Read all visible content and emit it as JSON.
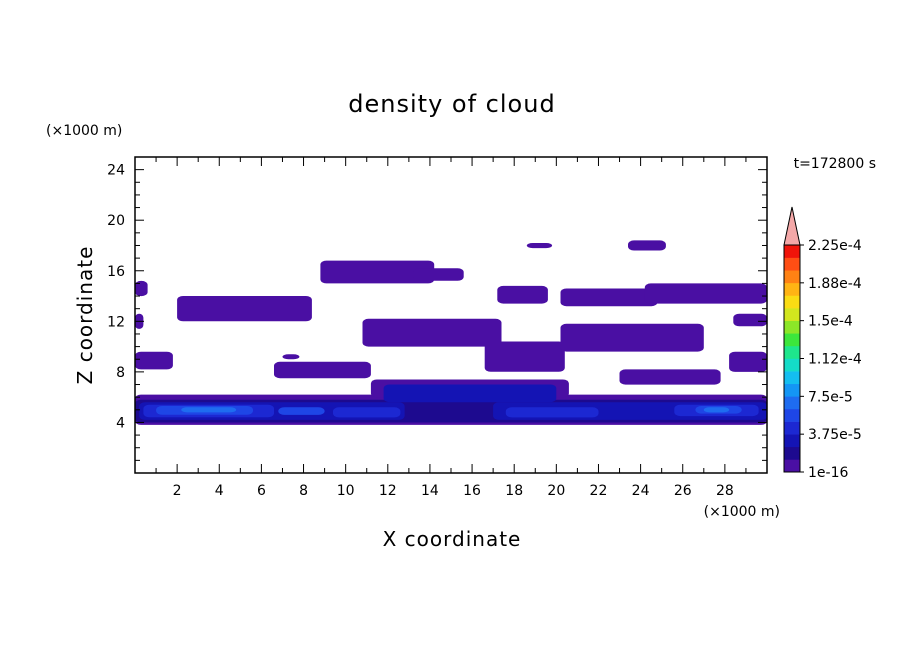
{
  "chart_data": {
    "type": "heatmap",
    "title": "density of cloud",
    "time_label": "t=172800 s",
    "xlabel": "X coordinate",
    "ylabel": "Z coordinate",
    "x_unit": "(×1000 m)",
    "y_unit": "(×1000 m)",
    "xlim": [
      0,
      30
    ],
    "ylim": [
      0,
      25
    ],
    "x_ticks": [
      "2",
      "4",
      "6",
      "8",
      "10",
      "12",
      "14",
      "16",
      "18",
      "20",
      "22",
      "24",
      "26",
      "28"
    ],
    "y_ticks": [
      "4",
      "8",
      "12",
      "16",
      "20",
      "24"
    ],
    "colorbar": {
      "labels": [
        "2.25e-4",
        "1.88e-4",
        "1.5e-4",
        "1.12e-4",
        "7.5e-5",
        "3.75e-5",
        "1e-16"
      ],
      "colors": [
        "#4a0fa3",
        "#1d0a8f",
        "#1414b4",
        "#1c28d2",
        "#1e46e6",
        "#1e6cf0",
        "#1496f5",
        "#14bef0",
        "#14dcc8",
        "#1ee68c",
        "#3ce63c",
        "#8ce628",
        "#d2e61e",
        "#fadc14",
        "#ffb414",
        "#ff8214",
        "#ff4e14",
        "#f0140a"
      ],
      "extend_color": "#f4a8a8"
    },
    "regions": [
      {
        "level": 0,
        "x0": 0.0,
        "x1": 0.6,
        "z0": 14.0,
        "z1": 15.2
      },
      {
        "level": 0,
        "x0": 0.0,
        "x1": 0.4,
        "z0": 11.4,
        "z1": 12.6
      },
      {
        "level": 0,
        "x0": 0.0,
        "x1": 1.8,
        "z0": 8.2,
        "z1": 9.6
      },
      {
        "level": 0,
        "x0": 2.0,
        "x1": 8.4,
        "z0": 12.0,
        "z1": 14.0
      },
      {
        "level": 0,
        "x0": 8.8,
        "x1": 14.2,
        "z0": 15.0,
        "z1": 16.8
      },
      {
        "level": 0,
        "x0": 13.2,
        "x1": 15.6,
        "z0": 15.2,
        "z1": 16.2
      },
      {
        "level": 0,
        "x0": 6.6,
        "x1": 11.2,
        "z0": 7.5,
        "z1": 8.8
      },
      {
        "level": 0,
        "x0": 10.8,
        "x1": 17.4,
        "z0": 10.0,
        "z1": 12.2
      },
      {
        "level": 0,
        "x0": 16.6,
        "x1": 20.4,
        "z0": 8.0,
        "z1": 10.4
      },
      {
        "level": 0,
        "x0": 20.2,
        "x1": 27.0,
        "z0": 9.6,
        "z1": 11.8
      },
      {
        "level": 0,
        "x0": 17.2,
        "x1": 19.6,
        "z0": 13.4,
        "z1": 14.8
      },
      {
        "level": 0,
        "x0": 20.2,
        "x1": 24.8,
        "z0": 13.2,
        "z1": 14.6
      },
      {
        "level": 0,
        "x0": 24.2,
        "x1": 30.0,
        "z0": 13.4,
        "z1": 15.0
      },
      {
        "level": 0,
        "x0": 28.4,
        "x1": 30.0,
        "z0": 11.6,
        "z1": 12.6
      },
      {
        "level": 0,
        "x0": 28.2,
        "x1": 30.0,
        "z0": 8.0,
        "z1": 9.6
      },
      {
        "level": 0,
        "x0": 23.0,
        "x1": 27.8,
        "z0": 7.0,
        "z1": 8.2
      },
      {
        "level": 0,
        "x0": 23.4,
        "x1": 25.2,
        "z0": 17.6,
        "z1": 18.4
      },
      {
        "level": 0,
        "x0": 18.6,
        "x1": 19.8,
        "z0": 17.8,
        "z1": 18.2
      },
      {
        "level": 0,
        "x0": 7.0,
        "x1": 7.8,
        "z0": 9.0,
        "z1": 9.4
      },
      {
        "level": 0,
        "x0": 0.0,
        "x1": 30.0,
        "z0": 3.8,
        "z1": 6.2
      },
      {
        "level": 0,
        "x0": 11.2,
        "x1": 20.6,
        "z0": 6.0,
        "z1": 7.4
      },
      {
        "level": 1,
        "x0": 0.0,
        "x1": 30.0,
        "z0": 4.0,
        "z1": 5.8
      },
      {
        "level": 2,
        "x0": 11.8,
        "x1": 20.0,
        "z0": 5.6,
        "z1": 7.0
      },
      {
        "level": 2,
        "x0": 0.2,
        "x1": 12.8,
        "z0": 4.2,
        "z1": 5.6
      },
      {
        "level": 2,
        "x0": 17.0,
        "x1": 30.0,
        "z0": 4.2,
        "z1": 5.6
      },
      {
        "level": 3,
        "x0": 0.4,
        "x1": 6.6,
        "z0": 4.4,
        "z1": 5.4
      },
      {
        "level": 3,
        "x0": 9.4,
        "x1": 12.6,
        "z0": 4.4,
        "z1": 5.2
      },
      {
        "level": 3,
        "x0": 17.6,
        "x1": 22.0,
        "z0": 4.4,
        "z1": 5.2
      },
      {
        "level": 3,
        "x0": 25.6,
        "x1": 29.6,
        "z0": 4.5,
        "z1": 5.4
      },
      {
        "level": 4,
        "x0": 1.0,
        "x1": 5.6,
        "z0": 4.6,
        "z1": 5.3
      },
      {
        "level": 4,
        "x0": 6.8,
        "x1": 9.0,
        "z0": 4.6,
        "z1": 5.2
      },
      {
        "level": 4,
        "x0": 26.6,
        "x1": 28.8,
        "z0": 4.7,
        "z1": 5.3
      },
      {
        "level": 5,
        "x0": 2.2,
        "x1": 4.8,
        "z0": 4.8,
        "z1": 5.2
      },
      {
        "level": 5,
        "x0": 27.0,
        "x1": 28.2,
        "z0": 4.8,
        "z1": 5.2
      }
    ]
  }
}
